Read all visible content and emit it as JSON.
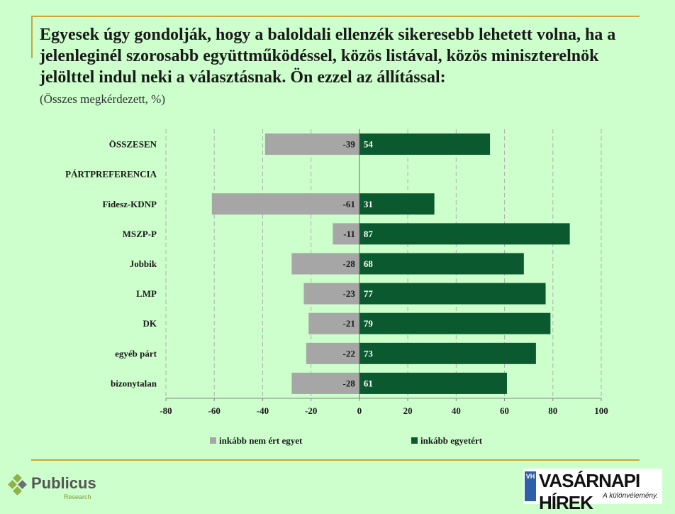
{
  "header": {
    "title": "Egyesek úgy gondolják, hogy a baloldali ellenzék sikeresebb lehetett volna, ha a jelenleginél szorosabb együttműködéssel, közös listával, közös miniszterelnök jelölttel indul neki a választásnak. Ön ezzel az állítással:",
    "subtitle": "(Összes megkérdezett, %)"
  },
  "chart_data": {
    "type": "bar",
    "orientation": "horizontal",
    "stacked": "diverging",
    "categories": [
      "ÖSSZESEN",
      "PÁRTPREFERENCIA",
      "Fidesz-KDNP",
      "MSZP-P",
      "Jobbik",
      "LMP",
      "DK",
      "egyéb párt",
      "bizonytalan"
    ],
    "series": [
      {
        "name": "inkább nem ért egyet",
        "values": [
          -39,
          null,
          -61,
          -11,
          -28,
          -23,
          -21,
          -22,
          -28
        ],
        "color": "#a6a6a6"
      },
      {
        "name": "inkább egyetért",
        "values": [
          54,
          null,
          31,
          87,
          68,
          77,
          79,
          73,
          61
        ],
        "color": "#0b5a2f"
      }
    ],
    "xlim": [
      -80,
      100
    ],
    "xticks": [
      -80,
      -60,
      -40,
      -20,
      0,
      20,
      40,
      60,
      80,
      100
    ],
    "grid": "vertical-dashed",
    "legend": "bottom"
  },
  "logos": {
    "left": {
      "name": "Publicus",
      "sub": "Research"
    },
    "right": {
      "badge": "VH",
      "name": "VASÁRNAPI HÍREK",
      "tagline": "A különvélemény."
    }
  }
}
